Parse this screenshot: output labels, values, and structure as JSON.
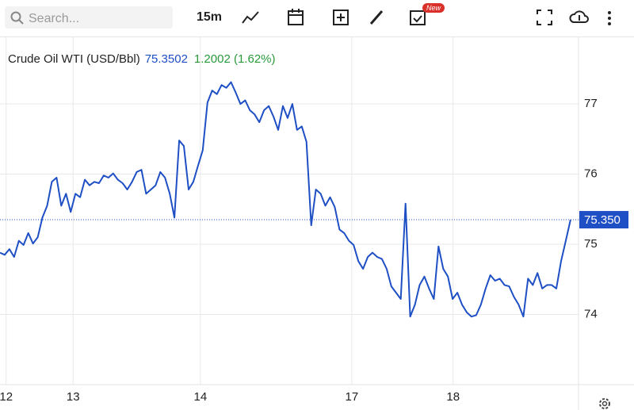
{
  "toolbar": {
    "search_placeholder": "Search...",
    "interval": "15m",
    "badge": "New"
  },
  "chart_data": {
    "type": "line",
    "title": "Crude Oil WTI (USD/Bbl)",
    "last_price": "75.3502",
    "change": "1.2002 (1.62%)",
    "color": "#1f4fc4",
    "values": [
      74.88,
      74.85,
      74.93,
      74.82,
      75.05,
      74.99,
      75.16,
      75.01,
      75.1,
      75.38,
      75.55,
      75.89,
      75.95,
      75.55,
      75.72,
      75.46,
      75.72,
      75.67,
      75.92,
      75.84,
      75.89,
      75.87,
      75.98,
      75.95,
      76.01,
      75.92,
      75.87,
      75.78,
      75.89,
      76.03,
      76.06,
      75.72,
      75.78,
      75.84,
      76.03,
      75.95,
      75.72,
      75.38,
      76.48,
      76.4,
      75.78,
      75.89,
      76.12,
      76.34,
      77.02,
      77.19,
      77.14,
      77.27,
      77.23,
      77.31,
      77.16,
      77.0,
      77.05,
      76.91,
      76.85,
      76.74,
      76.91,
      76.97,
      76.82,
      76.63,
      76.97,
      76.8,
      77.0,
      76.63,
      76.68,
      76.46,
      75.27,
      75.78,
      75.72,
      75.55,
      75.67,
      75.53,
      75.21,
      75.16,
      75.05,
      74.99,
      74.76,
      74.65,
      74.82,
      74.88,
      74.82,
      74.79,
      74.65,
      74.4,
      74.31,
      74.22,
      75.58,
      73.97,
      74.14,
      74.42,
      74.54,
      74.37,
      74.22,
      74.97,
      74.65,
      74.54,
      74.22,
      74.31,
      74.14,
      74.03,
      73.97,
      73.99,
      74.14,
      74.37,
      74.56,
      74.48,
      74.51,
      74.42,
      74.4,
      74.25,
      74.14,
      73.97,
      74.51,
      74.42,
      74.59,
      74.37,
      74.42,
      74.42,
      74.37,
      74.76,
      75.05,
      75.35
    ],
    "last_value_label": "75.350",
    "xlim": [
      0,
      122.7
    ],
    "xticks": [
      {
        "value": 1.3,
        "label": "12"
      },
      {
        "value": 15.5,
        "label": "13"
      },
      {
        "value": 42.5,
        "label": "14"
      },
      {
        "value": 74.6,
        "label": "17"
      },
      {
        "value": 96.1,
        "label": "18"
      }
    ],
    "ylim": [
      73.0,
      77.95
    ],
    "yticks": [
      74,
      75,
      76,
      77
    ],
    "grid": true
  }
}
